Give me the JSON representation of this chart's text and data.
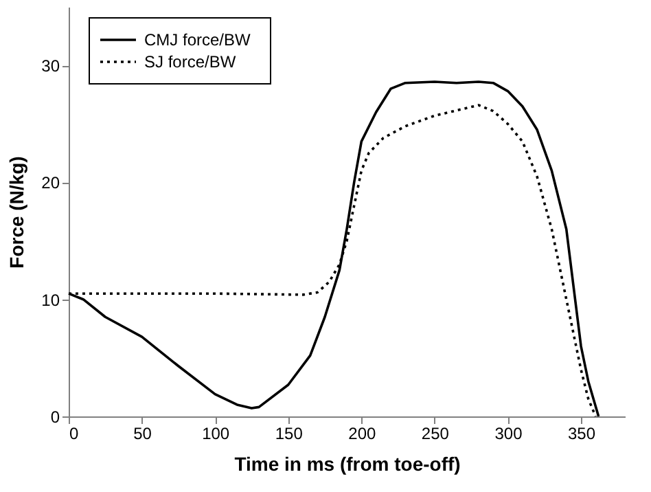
{
  "chart_data": {
    "type": "line",
    "xlabel": "Time in ms (from toe-off)",
    "ylabel": "Force (N/kg)",
    "xlim": [
      0,
      380
    ],
    "xticks": [
      0,
      50,
      100,
      150,
      200,
      250,
      300,
      350
    ],
    "ylim": [
      0,
      35
    ],
    "yticks": [
      0,
      10,
      20,
      30
    ],
    "grid": false,
    "legend": "top left",
    "marker": "none",
    "series": [
      {
        "name": "CMJ force/BW",
        "color": "#000000",
        "line_style": "solid",
        "x": [
          0,
          10,
          25,
          50,
          75,
          100,
          115,
          125,
          130,
          150,
          165,
          175,
          185,
          190,
          195,
          200,
          210,
          220,
          230,
          250,
          265,
          280,
          290,
          300,
          310,
          320,
          330,
          340,
          345,
          350,
          355,
          362
        ],
        "values": [
          10.5,
          10,
          8.5,
          6.8,
          4.3,
          1.9,
          1.0,
          0.7,
          0.8,
          2.7,
          5.2,
          8.5,
          12.5,
          16,
          20,
          23.5,
          26,
          28,
          28.5,
          28.6,
          28.5,
          28.6,
          28.5,
          27.8,
          26.5,
          24.5,
          21,
          16,
          11,
          6,
          3,
          0
        ]
      },
      {
        "name": "SJ force/BW",
        "color": "#000000",
        "line_style": "dotted",
        "x": [
          0,
          50,
          100,
          160,
          170,
          178,
          185,
          190,
          195,
          200,
          205,
          215,
          230,
          250,
          270,
          280,
          290,
          300,
          310,
          320,
          330,
          340,
          345,
          350,
          355,
          360
        ],
        "values": [
          10.5,
          10.5,
          10.5,
          10.4,
          10.6,
          11.5,
          13,
          15,
          18,
          21,
          22.5,
          23.8,
          24.8,
          25.7,
          26.3,
          26.6,
          26.1,
          25,
          23.5,
          20.5,
          16,
          10,
          7,
          4,
          1.5,
          0
        ]
      }
    ]
  }
}
